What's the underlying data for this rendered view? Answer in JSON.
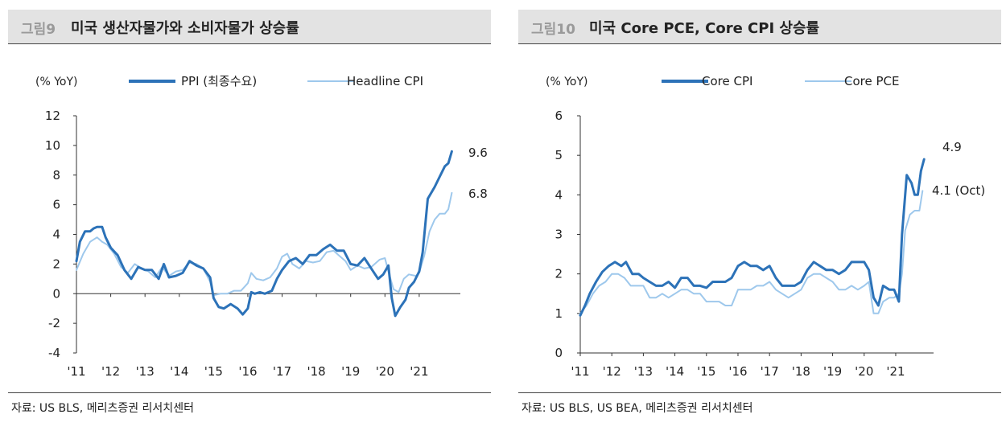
{
  "left": {
    "figure_number": "그림9",
    "title": "미국 생산자물가와 소비자물가 상승률",
    "source": "자료: US BLS, 메리츠증권 리서치센터"
  },
  "right": {
    "figure_number": "그림10",
    "title": "미국 Core PCE, Core CPI 상승률",
    "source": "자료: US BLS, US BEA, 메리츠증권 리서치센터"
  },
  "colors": {
    "dark": "#2c72b8",
    "light": "#9ec8ec"
  },
  "chart_data": [
    {
      "type": "line",
      "ylabel": "(% YoY)",
      "ylim": [
        -4,
        12
      ],
      "yticks": [
        "12",
        "10",
        "8",
        "6",
        "4",
        "2",
        "0",
        "-2",
        "-4"
      ],
      "xlim": [
        2011,
        2022.2
      ],
      "xticks": [
        "'11",
        "'12",
        "'13",
        "'14",
        "'15",
        "'16",
        "'17",
        "'18",
        "'19",
        "'20",
        "'21"
      ],
      "legend_position": "top",
      "annotations": [
        "9.6",
        "6.8"
      ],
      "series": [
        {
          "name": "PPI (최종수요)",
          "style": "dark",
          "points": [
            [
              2011.0,
              2.2
            ],
            [
              2011.1,
              3.5
            ],
            [
              2011.25,
              4.2
            ],
            [
              2011.4,
              4.2
            ],
            [
              2011.5,
              4.4
            ],
            [
              2011.6,
              4.5
            ],
            [
              2011.75,
              4.5
            ],
            [
              2011.85,
              3.8
            ],
            [
              2012.0,
              3.1
            ],
            [
              2012.2,
              2.6
            ],
            [
              2012.4,
              1.6
            ],
            [
              2012.6,
              1.0
            ],
            [
              2012.8,
              1.8
            ],
            [
              2013.0,
              1.6
            ],
            [
              2013.2,
              1.6
            ],
            [
              2013.4,
              1.0
            ],
            [
              2013.55,
              2.0
            ],
            [
              2013.7,
              1.1
            ],
            [
              2013.9,
              1.2
            ],
            [
              2014.1,
              1.4
            ],
            [
              2014.3,
              2.2
            ],
            [
              2014.5,
              1.9
            ],
            [
              2014.7,
              1.7
            ],
            [
              2014.9,
              1.1
            ],
            [
              2015.0,
              -0.3
            ],
            [
              2015.15,
              -0.9
            ],
            [
              2015.3,
              -1.0
            ],
            [
              2015.5,
              -0.7
            ],
            [
              2015.7,
              -1.0
            ],
            [
              2015.85,
              -1.4
            ],
            [
              2016.0,
              -1.0
            ],
            [
              2016.1,
              0.1
            ],
            [
              2016.2,
              0.0
            ],
            [
              2016.35,
              0.1
            ],
            [
              2016.5,
              0.0
            ],
            [
              2016.7,
              0.2
            ],
            [
              2016.85,
              1.0
            ],
            [
              2017.0,
              1.6
            ],
            [
              2017.2,
              2.2
            ],
            [
              2017.4,
              2.4
            ],
            [
              2017.6,
              2.0
            ],
            [
              2017.8,
              2.6
            ],
            [
              2018.0,
              2.6
            ],
            [
              2018.2,
              3.0
            ],
            [
              2018.4,
              3.3
            ],
            [
              2018.6,
              2.9
            ],
            [
              2018.8,
              2.9
            ],
            [
              2019.0,
              2.0
            ],
            [
              2019.2,
              1.9
            ],
            [
              2019.4,
              2.4
            ],
            [
              2019.6,
              1.7
            ],
            [
              2019.8,
              1.0
            ],
            [
              2019.95,
              1.3
            ],
            [
              2020.1,
              1.9
            ],
            [
              2020.2,
              -0.3
            ],
            [
              2020.3,
              -1.5
            ],
            [
              2020.45,
              -0.9
            ],
            [
              2020.6,
              -0.4
            ],
            [
              2020.7,
              0.4
            ],
            [
              2020.85,
              0.8
            ],
            [
              2021.0,
              1.5
            ],
            [
              2021.1,
              2.8
            ],
            [
              2021.25,
              6.4
            ],
            [
              2021.45,
              7.2
            ],
            [
              2021.6,
              7.9
            ],
            [
              2021.75,
              8.6
            ],
            [
              2021.85,
              8.8
            ],
            [
              2021.95,
              9.6
            ]
          ]
        },
        {
          "name": "Headline CPI",
          "style": "light",
          "points": [
            [
              2011.0,
              1.6
            ],
            [
              2011.2,
              2.7
            ],
            [
              2011.4,
              3.5
            ],
            [
              2011.6,
              3.8
            ],
            [
              2011.75,
              3.5
            ],
            [
              2011.9,
              3.3
            ],
            [
              2012.1,
              2.7
            ],
            [
              2012.3,
              1.8
            ],
            [
              2012.5,
              1.4
            ],
            [
              2012.7,
              2.0
            ],
            [
              2012.9,
              1.7
            ],
            [
              2013.1,
              1.5
            ],
            [
              2013.3,
              1.1
            ],
            [
              2013.5,
              1.8
            ],
            [
              2013.7,
              1.2
            ],
            [
              2013.9,
              1.5
            ],
            [
              2014.1,
              1.6
            ],
            [
              2014.3,
              2.1
            ],
            [
              2014.5,
              2.0
            ],
            [
              2014.7,
              1.7
            ],
            [
              2014.9,
              0.8
            ],
            [
              2015.0,
              -0.1
            ],
            [
              2015.2,
              0.0
            ],
            [
              2015.4,
              0.0
            ],
            [
              2015.6,
              0.2
            ],
            [
              2015.8,
              0.2
            ],
            [
              2016.0,
              0.7
            ],
            [
              2016.1,
              1.4
            ],
            [
              2016.25,
              1.0
            ],
            [
              2016.45,
              0.9
            ],
            [
              2016.65,
              1.1
            ],
            [
              2016.85,
              1.7
            ],
            [
              2017.0,
              2.5
            ],
            [
              2017.15,
              2.7
            ],
            [
              2017.3,
              2.0
            ],
            [
              2017.5,
              1.7
            ],
            [
              2017.7,
              2.2
            ],
            [
              2017.9,
              2.1
            ],
            [
              2018.1,
              2.2
            ],
            [
              2018.3,
              2.8
            ],
            [
              2018.5,
              2.9
            ],
            [
              2018.7,
              2.5
            ],
            [
              2018.85,
              2.2
            ],
            [
              2019.0,
              1.6
            ],
            [
              2019.2,
              1.9
            ],
            [
              2019.4,
              1.7
            ],
            [
              2019.6,
              1.8
            ],
            [
              2019.85,
              2.3
            ],
            [
              2020.0,
              2.4
            ],
            [
              2020.1,
              1.5
            ],
            [
              2020.25,
              0.3
            ],
            [
              2020.4,
              0.1
            ],
            [
              2020.55,
              1.0
            ],
            [
              2020.7,
              1.3
            ],
            [
              2020.9,
              1.2
            ],
            [
              2021.0,
              1.4
            ],
            [
              2021.15,
              2.6
            ],
            [
              2021.3,
              4.2
            ],
            [
              2021.45,
              5.0
            ],
            [
              2021.6,
              5.4
            ],
            [
              2021.75,
              5.4
            ],
            [
              2021.85,
              5.7
            ],
            [
              2021.95,
              6.8
            ]
          ]
        }
      ]
    },
    {
      "type": "line",
      "ylabel": "(% YoY)",
      "ylim": [
        0,
        6
      ],
      "yticks": [
        "6",
        "5",
        "4",
        "3",
        "2",
        "1",
        "0"
      ],
      "xlim": [
        2011,
        2022.2
      ],
      "xticks": [
        "'11",
        "'12",
        "'13",
        "'14",
        "'15",
        "'16",
        "'17",
        "'18",
        "'19",
        "'20",
        "'21"
      ],
      "legend_position": "top",
      "annotations": [
        "4.9",
        "4.1 (Oct)"
      ],
      "series": [
        {
          "name": "Core CPI",
          "style": "dark",
          "points": [
            [
              2011.0,
              0.95
            ],
            [
              2011.15,
              1.2
            ],
            [
              2011.3,
              1.5
            ],
            [
              2011.5,
              1.8
            ],
            [
              2011.7,
              2.05
            ],
            [
              2011.9,
              2.2
            ],
            [
              2012.1,
              2.3
            ],
            [
              2012.3,
              2.2
            ],
            [
              2012.45,
              2.3
            ],
            [
              2012.65,
              2.0
            ],
            [
              2012.85,
              2.0
            ],
            [
              2013.0,
              1.9
            ],
            [
              2013.2,
              1.8
            ],
            [
              2013.4,
              1.7
            ],
            [
              2013.6,
              1.7
            ],
            [
              2013.8,
              1.8
            ],
            [
              2014.0,
              1.65
            ],
            [
              2014.2,
              1.9
            ],
            [
              2014.4,
              1.9
            ],
            [
              2014.6,
              1.7
            ],
            [
              2014.8,
              1.7
            ],
            [
              2015.0,
              1.65
            ],
            [
              2015.2,
              1.8
            ],
            [
              2015.4,
              1.8
            ],
            [
              2015.6,
              1.8
            ],
            [
              2015.8,
              1.9
            ],
            [
              2016.0,
              2.2
            ],
            [
              2016.2,
              2.3
            ],
            [
              2016.4,
              2.2
            ],
            [
              2016.6,
              2.2
            ],
            [
              2016.8,
              2.1
            ],
            [
              2017.0,
              2.2
            ],
            [
              2017.2,
              1.9
            ],
            [
              2017.4,
              1.7
            ],
            [
              2017.6,
              1.7
            ],
            [
              2017.8,
              1.7
            ],
            [
              2018.0,
              1.8
            ],
            [
              2018.2,
              2.1
            ],
            [
              2018.4,
              2.3
            ],
            [
              2018.6,
              2.2
            ],
            [
              2018.8,
              2.1
            ],
            [
              2019.0,
              2.1
            ],
            [
              2019.2,
              2.0
            ],
            [
              2019.4,
              2.1
            ],
            [
              2019.6,
              2.3
            ],
            [
              2019.8,
              2.3
            ],
            [
              2020.0,
              2.3
            ],
            [
              2020.15,
              2.1
            ],
            [
              2020.3,
              1.4
            ],
            [
              2020.45,
              1.2
            ],
            [
              2020.6,
              1.7
            ],
            [
              2020.8,
              1.6
            ],
            [
              2020.95,
              1.6
            ],
            [
              2021.1,
              1.3
            ],
            [
              2021.2,
              3.0
            ],
            [
              2021.35,
              4.5
            ],
            [
              2021.5,
              4.3
            ],
            [
              2021.6,
              4.0
            ],
            [
              2021.7,
              4.0
            ],
            [
              2021.8,
              4.6
            ],
            [
              2021.9,
              4.9
            ]
          ]
        },
        {
          "name": "Core PCE",
          "style": "light",
          "points": [
            [
              2011.0,
              1.0
            ],
            [
              2011.2,
              1.2
            ],
            [
              2011.4,
              1.5
            ],
            [
              2011.6,
              1.7
            ],
            [
              2011.8,
              1.8
            ],
            [
              2012.0,
              2.0
            ],
            [
              2012.2,
              2.0
            ],
            [
              2012.4,
              1.9
            ],
            [
              2012.6,
              1.7
            ],
            [
              2012.8,
              1.7
            ],
            [
              2013.0,
              1.7
            ],
            [
              2013.2,
              1.4
            ],
            [
              2013.4,
              1.4
            ],
            [
              2013.6,
              1.5
            ],
            [
              2013.8,
              1.4
            ],
            [
              2014.0,
              1.5
            ],
            [
              2014.2,
              1.6
            ],
            [
              2014.4,
              1.6
            ],
            [
              2014.6,
              1.5
            ],
            [
              2014.8,
              1.5
            ],
            [
              2015.0,
              1.3
            ],
            [
              2015.2,
              1.3
            ],
            [
              2015.4,
              1.3
            ],
            [
              2015.6,
              1.2
            ],
            [
              2015.8,
              1.2
            ],
            [
              2016.0,
              1.6
            ],
            [
              2016.2,
              1.6
            ],
            [
              2016.4,
              1.6
            ],
            [
              2016.6,
              1.7
            ],
            [
              2016.8,
              1.7
            ],
            [
              2017.0,
              1.8
            ],
            [
              2017.2,
              1.6
            ],
            [
              2017.4,
              1.5
            ],
            [
              2017.6,
              1.4
            ],
            [
              2017.8,
              1.5
            ],
            [
              2018.0,
              1.6
            ],
            [
              2018.2,
              1.9
            ],
            [
              2018.4,
              2.0
            ],
            [
              2018.6,
              2.0
            ],
            [
              2018.8,
              1.9
            ],
            [
              2019.0,
              1.8
            ],
            [
              2019.2,
              1.6
            ],
            [
              2019.4,
              1.6
            ],
            [
              2019.6,
              1.7
            ],
            [
              2019.8,
              1.6
            ],
            [
              2020.0,
              1.7
            ],
            [
              2020.15,
              1.8
            ],
            [
              2020.3,
              1.0
            ],
            [
              2020.45,
              1.0
            ],
            [
              2020.6,
              1.3
            ],
            [
              2020.8,
              1.4
            ],
            [
              2020.95,
              1.4
            ],
            [
              2021.1,
              1.5
            ],
            [
              2021.2,
              2.0
            ],
            [
              2021.3,
              3.1
            ],
            [
              2021.45,
              3.5
            ],
            [
              2021.6,
              3.6
            ],
            [
              2021.75,
              3.6
            ],
            [
              2021.85,
              4.1
            ]
          ]
        }
      ]
    }
  ]
}
